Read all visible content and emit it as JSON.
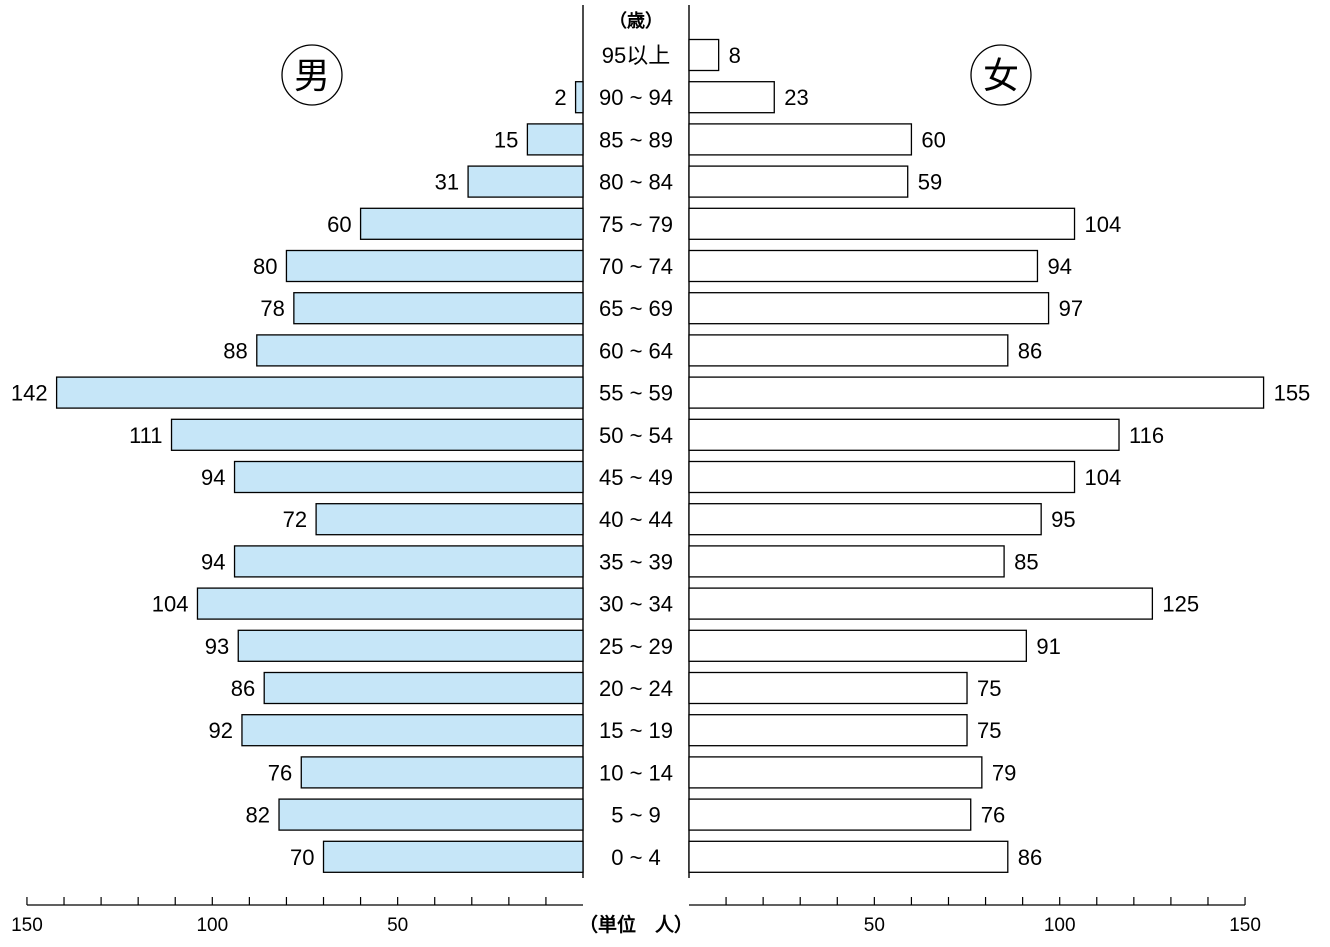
{
  "chart_data": {
    "type": "bar",
    "subtype": "population-pyramid",
    "age_unit_label": "（歳）",
    "unit_label": "（単位　人）",
    "categories": [
      "95以上",
      "90 ~ 94",
      "85 ~ 89",
      "80 ~ 84",
      "75 ~ 79",
      "70 ~ 74",
      "65 ~ 69",
      "60 ~ 64",
      "55 ~ 59",
      "50 ~ 54",
      "45 ~ 49",
      "40 ~ 44",
      "35 ~ 39",
      "30 ~ 34",
      "25 ~ 29",
      "20 ~ 24",
      "15 ~ 19",
      "10 ~ 14",
      "5 ~ 9",
      "0 ~ 4"
    ],
    "series": [
      {
        "name": "男",
        "side": "left",
        "color": "#c6e6f8",
        "values": [
          null,
          2,
          15,
          31,
          60,
          80,
          78,
          88,
          142,
          111,
          94,
          72,
          94,
          104,
          93,
          86,
          92,
          76,
          82,
          70
        ]
      },
      {
        "name": "女",
        "side": "right",
        "color": "#ffffff",
        "values": [
          8,
          23,
          60,
          59,
          104,
          94,
          97,
          86,
          155,
          116,
          104,
          95,
          85,
          125,
          91,
          75,
          75,
          79,
          76,
          86
        ]
      }
    ],
    "xlim": [
      0,
      150
    ],
    "ticks": [
      150,
      100,
      50
    ],
    "right_ticks": [
      50,
      100,
      150
    ],
    "minor_tick_step": 10,
    "legend": "none",
    "grid": false
  }
}
